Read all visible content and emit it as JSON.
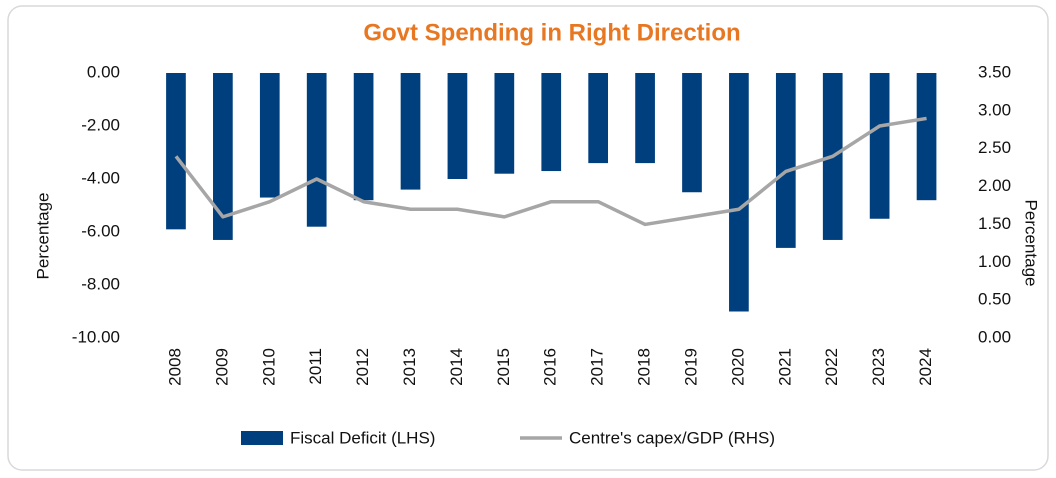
{
  "chart_data": {
    "type": "bar_line",
    "title": "Govt Spending in Right Direction",
    "y_label": "Percentage",
    "y2_label": "Percentage",
    "categories": [
      "2008",
      "2009",
      "2010",
      "2011",
      "2012",
      "2013",
      "2014",
      "2015",
      "2016",
      "2017",
      "2018",
      "2019",
      "2020",
      "2021",
      "2022",
      "2023",
      "2024"
    ],
    "series": [
      {
        "name": "Fiscal Deficit (LHS)",
        "type": "bar",
        "color": "#003f7d",
        "values": [
          -5.9,
          -6.3,
          -4.7,
          -5.8,
          -4.8,
          -4.4,
          -4.0,
          -3.8,
          -3.7,
          -3.4,
          -3.4,
          -4.5,
          -9.0,
          -6.6,
          -6.3,
          -5.5,
          -4.8
        ]
      },
      {
        "name": "Centre's capex/GDP (RHS)",
        "type": "line",
        "axis": "y2",
        "color": "#a6a6a6",
        "values": [
          2.4,
          1.6,
          1.8,
          2.1,
          1.8,
          1.7,
          1.7,
          1.6,
          1.8,
          1.8,
          1.5,
          1.6,
          1.7,
          2.2,
          2.4,
          2.8,
          2.9
        ]
      }
    ],
    "ylim": [
      -10,
      0
    ],
    "yticks": [
      {
        "value": 0,
        "label": "0.00"
      },
      {
        "value": -2,
        "label": "-2.00"
      },
      {
        "value": -4,
        "label": "-4.00"
      },
      {
        "value": -6,
        "label": "-6.00"
      },
      {
        "value": -8,
        "label": "-8.00"
      },
      {
        "value": -10,
        "label": "-10.00"
      }
    ],
    "y2lim": [
      0,
      3.5
    ],
    "y2ticks": [
      {
        "value": 3.5,
        "label": "3.50"
      },
      {
        "value": 3,
        "label": "3.00"
      },
      {
        "value": 2.5,
        "label": "2.50"
      },
      {
        "value": 2,
        "label": "2.00"
      },
      {
        "value": 1.5,
        "label": "1.50"
      },
      {
        "value": 1,
        "label": "1.00"
      },
      {
        "value": 0.5,
        "label": "0.50"
      },
      {
        "value": 0,
        "label": "0.00"
      }
    ],
    "legend": "bottom",
    "grid": false
  }
}
